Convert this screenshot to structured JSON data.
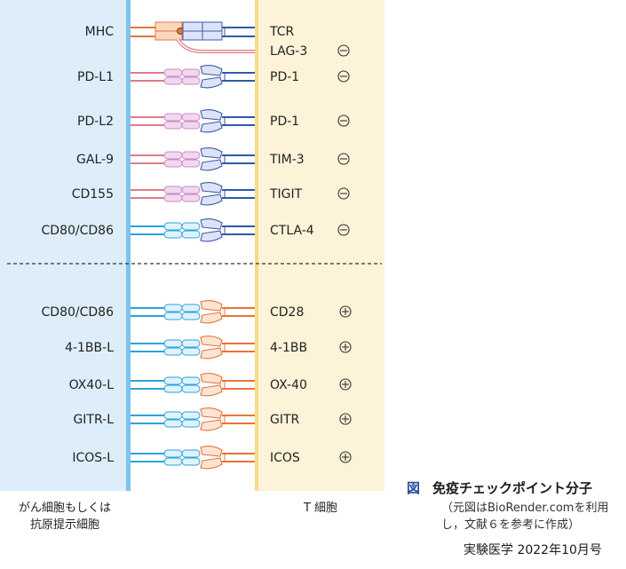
{
  "colors": {
    "apc_band": "#ddeefa",
    "apc_membrane": "#7ec3ec",
    "t_band": "#fdf3d8",
    "t_membrane": "#f7dc88",
    "inhibitory_line": "#e07a8a",
    "inhibitory_ligand_fill": "#f2d8ee",
    "inhibitory_ligand_stroke": "#c88bc4",
    "receptor_fill": "#dde3f7",
    "receptor_stroke": "#3e5ca8",
    "receptor_line": "#2e5aa8",
    "stim_line": "#2ea2d8",
    "stim_ligand_fill": "#dff3fd",
    "stim_ligand_stroke": "#2ea2d8",
    "stim_receptor_fill": "#fde4d2",
    "stim_receptor_stroke": "#e8743a",
    "stim_receptor_line": "#e8743a",
    "mhc_fill": "#fbd7bf",
    "mhc_stroke": "#e8743a",
    "divider": "#333333"
  },
  "inhibitory_pairs": [
    {
      "ligand": "MHC",
      "receptor": "TCR",
      "sign": ""
    },
    {
      "ligand": "",
      "receptor": "LAG-3",
      "sign": "⊖"
    },
    {
      "ligand": "PD-L1",
      "receptor": "PD-1",
      "sign": "⊖"
    },
    {
      "ligand": "PD-L2",
      "receptor": "PD-1",
      "sign": "⊖"
    },
    {
      "ligand": "GAL-9",
      "receptor": "TIM-3",
      "sign": "⊖"
    },
    {
      "ligand": "CD155",
      "receptor": "TIGIT",
      "sign": "⊖"
    },
    {
      "ligand": "CD80/CD86",
      "receptor": "CTLA-4",
      "sign": "⊖"
    }
  ],
  "stimulatory_pairs": [
    {
      "ligand": "CD80/CD86",
      "receptor": "CD28",
      "sign": "⊕"
    },
    {
      "ligand": "4-1BB-L",
      "receptor": "4-1BB",
      "sign": "⊕"
    },
    {
      "ligand": "OX40-L",
      "receptor": "OX-40",
      "sign": "⊕"
    },
    {
      "ligand": "GITR-L",
      "receptor": "GITR",
      "sign": "⊕"
    },
    {
      "ligand": "ICOS-L",
      "receptor": "ICOS",
      "sign": "⊕"
    }
  ],
  "labels": {
    "left_cell_line1": "がん細胞もしくは",
    "left_cell_line2": "抗原提示細胞",
    "right_cell": "T 細胞"
  },
  "caption": {
    "fig": "図",
    "title": "免疫チェックポイント分子",
    "note_line1": "（元図はBioRender.comを利用",
    "note_line2": "し，文献６を参考に作成）",
    "source": "実験医学 2022年10月号"
  }
}
